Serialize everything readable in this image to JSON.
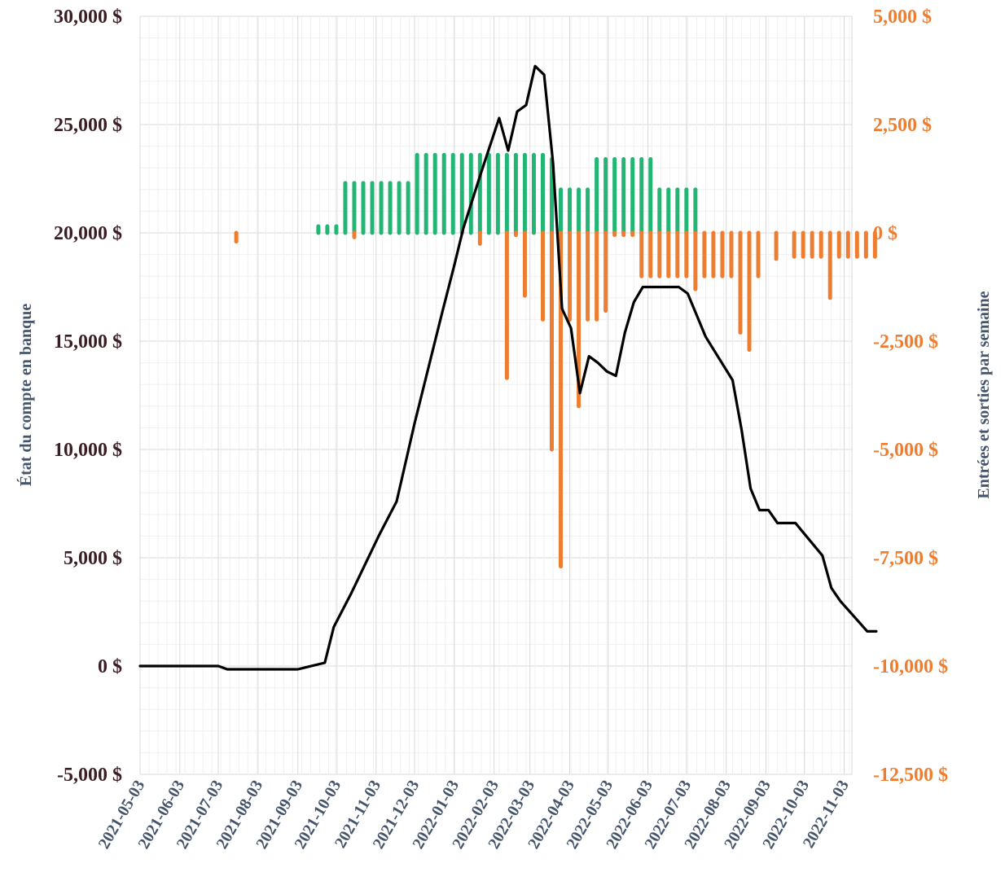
{
  "chart_data": {
    "type": "bar+line",
    "title": "",
    "x_range": [
      "2021-05-03",
      "2022-11-09"
    ],
    "x_tick_labels": [
      "2021-05-03",
      "2021-06-03",
      "2021-07-03",
      "2021-08-03",
      "2021-09-03",
      "2021-10-03",
      "2021-11-03",
      "2021-12-03",
      "2022-01-03",
      "2022-02-03",
      "2022-03-03",
      "2022-04-03",
      "2022-05-03",
      "2022-06-03",
      "2022-07-03",
      "2022-08-03",
      "2022-09-03",
      "2022-10-03",
      "2022-11-03"
    ],
    "y_left": {
      "label": "État du compte en banque",
      "range": [
        -5000,
        30000
      ],
      "tick_values": [
        -5000,
        0,
        5000,
        10000,
        15000,
        20000,
        25000,
        30000
      ],
      "tick_labels": [
        "-5,000 $",
        "0 $",
        "5,000 $",
        "10,000 $",
        "15,000 $",
        "20,000 $",
        "25,000 $",
        "30,000 $"
      ]
    },
    "y_right": {
      "label": "Entrées et sorties par semaine",
      "range": [
        -12500,
        5000
      ],
      "tick_values": [
        -12500,
        -10000,
        -7500,
        -5000,
        -2500,
        0,
        2500,
        5000
      ],
      "tick_labels": [
        "-12,500 $",
        "-10,000 $",
        "-7,500 $",
        "-5,000 $",
        "-2,500 $",
        "0 $",
        "2,500 $",
        "5,000 $"
      ]
    },
    "grid": true,
    "colors": {
      "balance_line": "#000000",
      "inflow_bars": "#22b573",
      "outflow_bars": "#ed7d31",
      "left_ticks": "#3a1e24",
      "right_ticks": "#ed7d31",
      "axis_titles": "#44546a",
      "grid": "#d9d9d9"
    },
    "balance_series": {
      "axis": "left",
      "points": [
        [
          "2021-05-03",
          0
        ],
        [
          "2021-07-03",
          0
        ],
        [
          "2021-07-10",
          -150
        ],
        [
          "2021-09-03",
          -150
        ],
        [
          "2021-09-10",
          -50
        ],
        [
          "2021-09-24",
          150
        ],
        [
          "2021-10-01",
          1800
        ],
        [
          "2021-10-15",
          3400
        ],
        [
          "2021-11-05",
          6000
        ],
        [
          "2021-11-19",
          7600
        ],
        [
          "2021-12-03",
          11200
        ],
        [
          "2021-12-24",
          16200
        ],
        [
          "2022-01-03",
          18500
        ],
        [
          "2022-01-10",
          20200
        ],
        [
          "2022-01-24",
          22800
        ],
        [
          "2022-02-07",
          25300
        ],
        [
          "2022-02-14",
          23800
        ],
        [
          "2022-02-21",
          25600
        ],
        [
          "2022-02-28",
          25900
        ],
        [
          "2022-03-07",
          27700
        ],
        [
          "2022-03-14",
          27300
        ],
        [
          "2022-03-21",
          23200
        ],
        [
          "2022-03-28",
          16500
        ],
        [
          "2022-04-04",
          15600
        ],
        [
          "2022-04-11",
          12600
        ],
        [
          "2022-04-18",
          14300
        ],
        [
          "2022-04-25",
          14000
        ],
        [
          "2022-05-02",
          13600
        ],
        [
          "2022-05-09",
          13400
        ],
        [
          "2022-05-16",
          15400
        ],
        [
          "2022-05-23",
          16800
        ],
        [
          "2022-05-30",
          17500
        ],
        [
          "2022-06-27",
          17500
        ],
        [
          "2022-07-04",
          17200
        ],
        [
          "2022-07-18",
          15200
        ],
        [
          "2022-08-08",
          13200
        ],
        [
          "2022-08-15",
          10900
        ],
        [
          "2022-08-22",
          8200
        ],
        [
          "2022-08-29",
          7200
        ],
        [
          "2022-09-05",
          7200
        ],
        [
          "2022-09-12",
          6600
        ],
        [
          "2022-09-26",
          6600
        ],
        [
          "2022-10-03",
          6100
        ],
        [
          "2022-10-17",
          5100
        ],
        [
          "2022-10-24",
          3600
        ],
        [
          "2022-10-31",
          3000
        ],
        [
          "2022-11-21",
          1600
        ],
        [
          "2022-11-28",
          1600
        ]
      ]
    },
    "weekly_flows": {
      "axis": "right",
      "inflows": [
        [
          "2021-09-19",
          150
        ],
        [
          "2021-09-26",
          150
        ],
        [
          "2021-10-03",
          150
        ],
        [
          "2021-10-10",
          1150
        ],
        [
          "2021-10-17",
          1150
        ],
        [
          "2021-10-24",
          1150
        ],
        [
          "2021-10-31",
          1150
        ],
        [
          "2021-11-07",
          1150
        ],
        [
          "2021-11-14",
          1150
        ],
        [
          "2021-11-21",
          1150
        ],
        [
          "2021-11-28",
          1150
        ],
        [
          "2021-12-05",
          1800
        ],
        [
          "2021-12-12",
          1800
        ],
        [
          "2021-12-19",
          1800
        ],
        [
          "2021-12-26",
          1800
        ],
        [
          "2022-01-02",
          1800
        ],
        [
          "2022-01-09",
          1800
        ],
        [
          "2022-01-16",
          1800
        ],
        [
          "2022-01-23",
          1800
        ],
        [
          "2022-01-30",
          1800
        ],
        [
          "2022-02-06",
          1800
        ],
        [
          "2022-02-13",
          1800
        ],
        [
          "2022-02-20",
          1800
        ],
        [
          "2022-02-27",
          1800
        ],
        [
          "2022-03-06",
          1800
        ],
        [
          "2022-03-13",
          1800
        ],
        [
          "2022-03-20",
          1700
        ],
        [
          "2022-03-27",
          1000
        ],
        [
          "2022-04-03",
          1000
        ],
        [
          "2022-04-10",
          1000
        ],
        [
          "2022-04-17",
          1000
        ],
        [
          "2022-04-24",
          1700
        ],
        [
          "2022-05-01",
          1700
        ],
        [
          "2022-05-08",
          1700
        ],
        [
          "2022-05-15",
          1700
        ],
        [
          "2022-05-22",
          1700
        ],
        [
          "2022-05-29",
          1700
        ],
        [
          "2022-06-05",
          1700
        ],
        [
          "2022-06-12",
          1000
        ],
        [
          "2022-06-19",
          1000
        ],
        [
          "2022-06-26",
          1000
        ],
        [
          "2022-07-03",
          1000
        ],
        [
          "2022-07-10",
          1000
        ]
      ],
      "outflows": [
        [
          "2021-07-17",
          -200
        ],
        [
          "2021-10-17",
          -100
        ],
        [
          "2022-01-23",
          -250
        ],
        [
          "2022-02-13",
          -3350
        ],
        [
          "2022-02-20",
          -50
        ],
        [
          "2022-02-27",
          -1450
        ],
        [
          "2022-03-13",
          -2000
        ],
        [
          "2022-03-20",
          -5000
        ],
        [
          "2022-03-27",
          -7700
        ],
        [
          "2022-04-03",
          -2000
        ],
        [
          "2022-04-10",
          -4000
        ],
        [
          "2022-04-17",
          -2000
        ],
        [
          "2022-04-24",
          -2000
        ],
        [
          "2022-05-01",
          -1800
        ],
        [
          "2022-05-08",
          -50
        ],
        [
          "2022-05-15",
          -50
        ],
        [
          "2022-05-22",
          -50
        ],
        [
          "2022-05-29",
          -1000
        ],
        [
          "2022-06-05",
          -1000
        ],
        [
          "2022-06-12",
          -1000
        ],
        [
          "2022-06-19",
          -1000
        ],
        [
          "2022-06-26",
          -1000
        ],
        [
          "2022-07-03",
          -1000
        ],
        [
          "2022-07-10",
          -1300
        ],
        [
          "2022-07-17",
          -1000
        ],
        [
          "2022-07-24",
          -1000
        ],
        [
          "2022-07-31",
          -1000
        ],
        [
          "2022-08-07",
          -1000
        ],
        [
          "2022-08-14",
          -2300
        ],
        [
          "2022-08-21",
          -2700
        ],
        [
          "2022-08-28",
          -1000
        ],
        [
          "2022-09-11",
          -600
        ],
        [
          "2022-09-25",
          -550
        ],
        [
          "2022-10-02",
          -550
        ],
        [
          "2022-10-09",
          -550
        ],
        [
          "2022-10-16",
          -550
        ],
        [
          "2022-10-23",
          -1500
        ],
        [
          "2022-10-30",
          -550
        ],
        [
          "2022-11-06",
          -550
        ],
        [
          "2022-11-13",
          -550
        ],
        [
          "2022-11-20",
          -550
        ],
        [
          "2022-11-27",
          -550
        ]
      ]
    }
  }
}
